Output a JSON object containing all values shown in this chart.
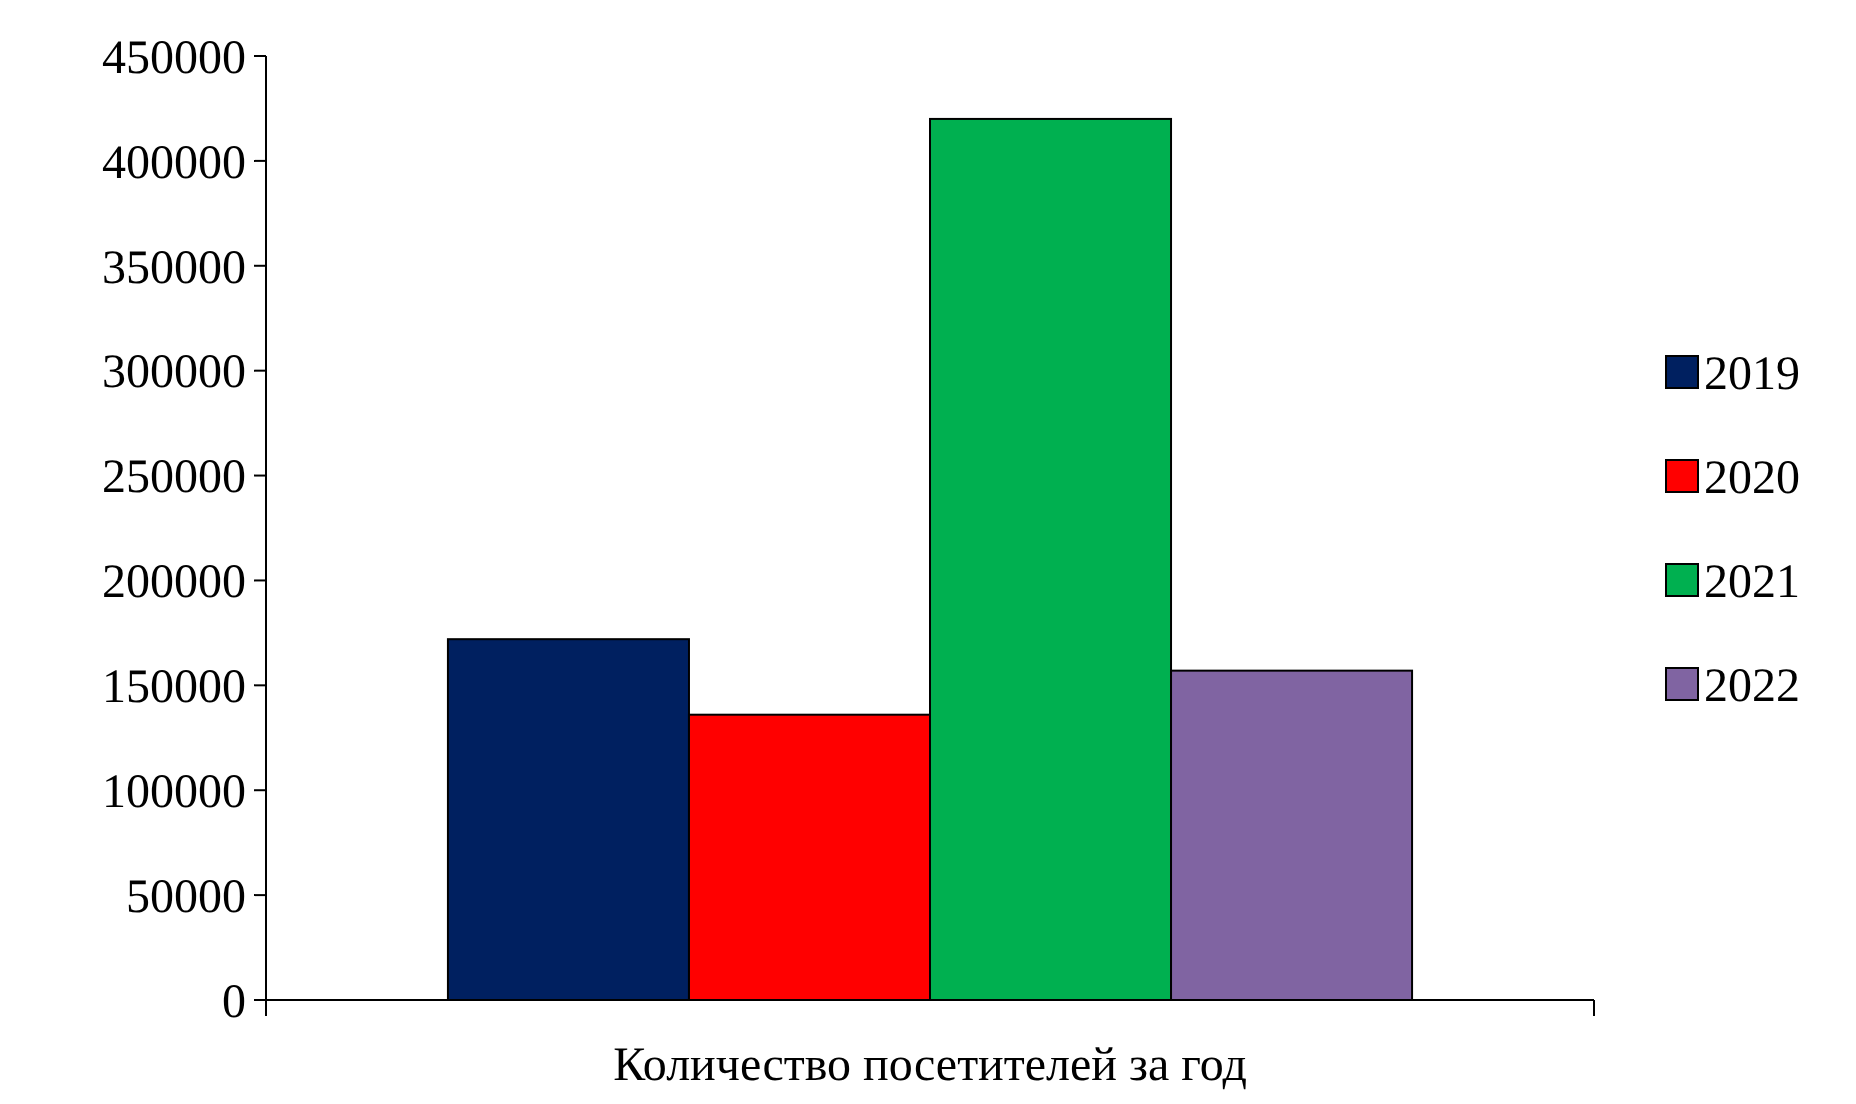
{
  "chart_data": {
    "type": "bar",
    "categories": [
      "Количество посетителей за год"
    ],
    "series": [
      {
        "name": "2019",
        "color": "#002060",
        "values": [
          172000
        ]
      },
      {
        "name": "2020",
        "color": "#ff0000",
        "values": [
          136000
        ]
      },
      {
        "name": "2021",
        "color": "#00b050",
        "values": [
          420000
        ]
      },
      {
        "name": "2022",
        "color": "#8064a2",
        "values": [
          157000
        ]
      }
    ],
    "ylim": [
      0,
      450000
    ],
    "yticks": [
      0,
      50000,
      100000,
      150000,
      200000,
      250000,
      300000,
      350000,
      400000,
      450000
    ],
    "grid": false,
    "legend": "right"
  }
}
